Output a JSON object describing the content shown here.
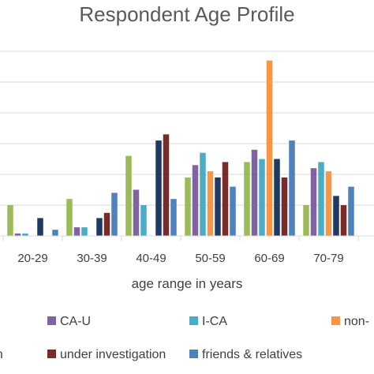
{
  "chart_data": {
    "type": "bar",
    "title": "Respondent Age Profile",
    "xlabel": "age range in years",
    "ylabel": "",
    "categories": [
      "20-29",
      "30-39",
      "40-49",
      "50-59",
      "60-69",
      "70-79"
    ],
    "ylim": [
      0,
      6
    ],
    "grid": true,
    "legend_position": "bottom",
    "series": [
      {
        "name": "",
        "color": "#9bbb59",
        "values": [
          1.0,
          1.2,
          2.6,
          1.9,
          2.4,
          1.0
        ]
      },
      {
        "name": "CA-U",
        "color": "#8064a2",
        "values": [
          0.08,
          0.28,
          1.5,
          2.3,
          2.8,
          2.2
        ]
      },
      {
        "name": "I-CA",
        "color": "#4bacc6",
        "values": [
          0.08,
          0.28,
          1.0,
          2.7,
          2.5,
          2.4
        ]
      },
      {
        "name": "non-",
        "color": "#f79646",
        "values": [
          null,
          null,
          null,
          2.1,
          5.7,
          2.1
        ]
      },
      {
        "name": "",
        "color": "#1f3864",
        "values": [
          0.58,
          0.58,
          3.1,
          1.9,
          2.5,
          1.3
        ]
      },
      {
        "name": "under investigation",
        "color": "#772c2a",
        "values": [
          null,
          0.75,
          3.3,
          2.4,
          1.9,
          1.0
        ]
      },
      {
        "name": "friends & relatives",
        "color": "#4f81bd",
        "values": [
          0.2,
          1.4,
          1.2,
          1.6,
          3.1,
          1.6
        ]
      }
    ],
    "legend": [
      {
        "label": "CA-U",
        "color": "#8064a2"
      },
      {
        "label": "I-CA",
        "color": "#4bacc6"
      },
      {
        "label": "non-",
        "color": "#f79646"
      },
      {
        "label": "on",
        "color": ""
      },
      {
        "label": "under investigation",
        "color": "#772c2a"
      },
      {
        "label": "friends & relatives",
        "color": "#4f81bd"
      }
    ]
  }
}
